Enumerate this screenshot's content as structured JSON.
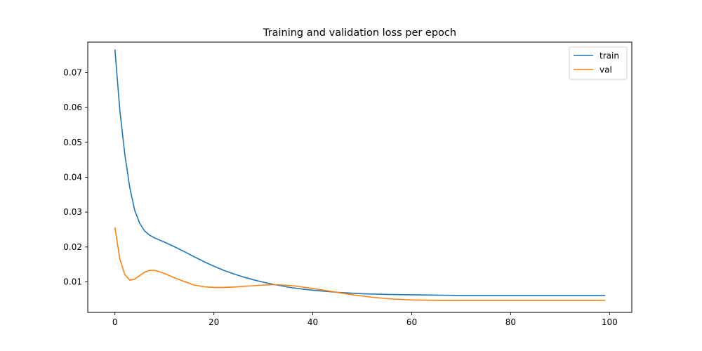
{
  "chart_data": {
    "type": "line",
    "title": "Training and validation loss per epoch",
    "xlabel": "",
    "ylabel": "",
    "xlim": [
      -5.5,
      104.5
    ],
    "ylim": [
      0.00125,
      0.07875
    ],
    "xticks": [
      0,
      20,
      40,
      60,
      80,
      100
    ],
    "xtick_labels": [
      "0",
      "20",
      "40",
      "60",
      "80",
      "100"
    ],
    "yticks": [
      0.01,
      0.02,
      0.03,
      0.04,
      0.05,
      0.06,
      0.07
    ],
    "ytick_labels": [
      "0.01",
      "0.02",
      "0.03",
      "0.04",
      "0.05",
      "0.06",
      "0.07"
    ],
    "grid": false,
    "legend_position": "top-right",
    "series": [
      {
        "name": "train",
        "color": "#1f77b4",
        "x": [
          0,
          1,
          2,
          3,
          4,
          5,
          6,
          7,
          8,
          10,
          12,
          14,
          16,
          18,
          20,
          22,
          24,
          26,
          28,
          30,
          32,
          35,
          38,
          40,
          45,
          50,
          55,
          60,
          65,
          70,
          75,
          80,
          85,
          90,
          95,
          99
        ],
        "y": [
          0.0765,
          0.059,
          0.0465,
          0.037,
          0.0305,
          0.0268,
          0.0246,
          0.0234,
          0.0226,
          0.0214,
          0.0201,
          0.0187,
          0.0172,
          0.0158,
          0.0145,
          0.0133,
          0.0123,
          0.0114,
          0.0106,
          0.0099,
          0.0093,
          0.0085,
          0.0079,
          0.0076,
          0.007,
          0.0066,
          0.0064,
          0.0063,
          0.0062,
          0.0061,
          0.0061,
          0.0061,
          0.0061,
          0.0061,
          0.0061,
          0.0061
        ]
      },
      {
        "name": "val",
        "color": "#ff7f0e",
        "x": [
          0,
          1,
          2,
          3,
          4,
          5,
          6,
          7,
          8,
          9,
          10,
          12,
          14,
          16,
          18,
          20,
          22,
          24,
          26,
          28,
          30,
          32,
          34,
          36,
          38,
          40,
          44,
          48,
          52,
          56,
          60,
          65,
          70,
          75,
          80,
          85,
          90,
          95,
          99
        ],
        "y": [
          0.0255,
          0.0165,
          0.0121,
          0.0105,
          0.0108,
          0.0118,
          0.0128,
          0.0133,
          0.0133,
          0.0129,
          0.0124,
          0.0112,
          0.0101,
          0.0091,
          0.0086,
          0.0084,
          0.0084,
          0.0085,
          0.0087,
          0.0089,
          0.0091,
          0.0092,
          0.0091,
          0.0089,
          0.0085,
          0.0081,
          0.0072,
          0.0063,
          0.0056,
          0.0051,
          0.0048,
          0.0047,
          0.0047,
          0.0047,
          0.0047,
          0.0047,
          0.0047,
          0.0047,
          0.0047
        ]
      }
    ]
  }
}
